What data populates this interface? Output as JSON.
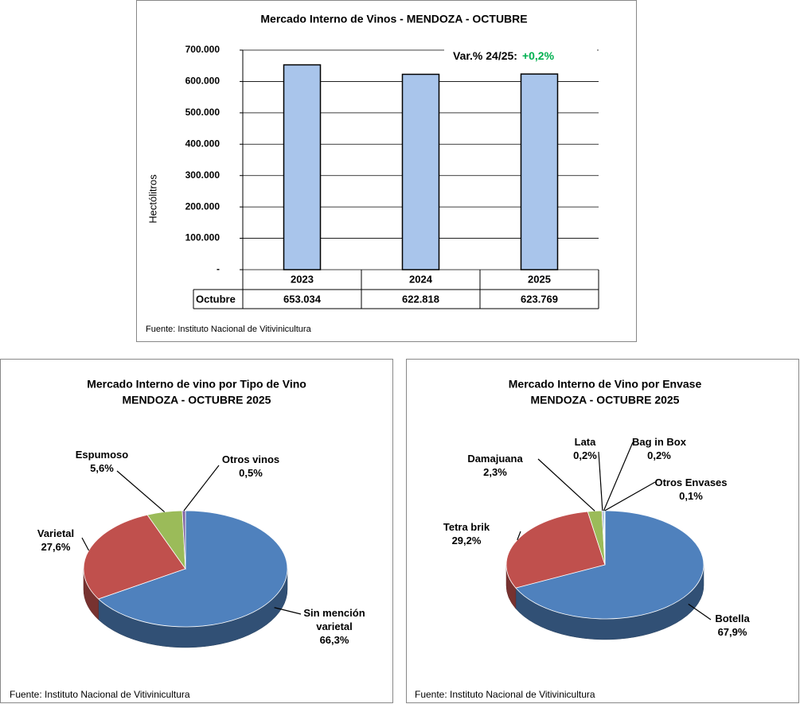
{
  "chart_data": [
    {
      "type": "bar",
      "title": "Mercado Interno de Vinos - MENDOZA  - OCTUBRE",
      "y_label": "Hectólitros",
      "categories": [
        "2023",
        "2024",
        "2025"
      ],
      "series": [
        {
          "name": "Octubre",
          "color": "#a9c5eb",
          "values": [
            653034,
            622818,
            623769
          ],
          "value_labels": [
            "653.034",
            "622.818",
            "623.769"
          ]
        }
      ],
      "ylim": [
        0,
        700000
      ],
      "yticks": [
        {
          "value": 0,
          "label": "-"
        },
        {
          "value": 100000,
          "label": "100.000"
        },
        {
          "value": 200000,
          "label": "200.000"
        },
        {
          "value": 300000,
          "label": "300.000"
        },
        {
          "value": 400000,
          "label": "400.000"
        },
        {
          "value": 500000,
          "label": "500.000"
        },
        {
          "value": 600000,
          "label": "600.000"
        },
        {
          "value": 700000,
          "label": "700.000"
        }
      ],
      "grid": true,
      "annotation": {
        "text": "Var.% 24/25:",
        "value_label": "+0,2%",
        "color": "#00b050"
      },
      "source": "Fuente: Instituto Nacional de Vitivinicultura"
    },
    {
      "type": "pie",
      "title": "Mercado Interno de vino por Tipo de Vino",
      "subtitle": "MENDOZA - OCTUBRE 2025",
      "categories": [
        "Sin mención varietal",
        "Varietal",
        "Espumoso",
        "Otros vinos"
      ],
      "values": [
        66.3,
        27.6,
        5.6,
        0.5
      ],
      "value_labels": [
        "66,3%",
        "27,6%",
        "5,6%",
        "0,5%"
      ],
      "colors": [
        "#4f81bd",
        "#c0504d",
        "#9bbb59",
        "#8064a2"
      ],
      "source": "Fuente: Instituto Nacional de Vitivinicultura"
    },
    {
      "type": "pie",
      "title": "Mercado Interno de Vino por Envase",
      "subtitle": "MENDOZA - OCTUBRE 2025",
      "categories": [
        "Botella",
        "Tetra brik",
        "Damajuana",
        "Lata",
        "Bag in Box",
        "Otros Envases"
      ],
      "values": [
        67.9,
        29.2,
        2.3,
        0.2,
        0.2,
        0.1
      ],
      "value_labels": [
        "67,9%",
        "29,2%",
        "2,3%",
        "0,2%",
        "0,2%",
        "0,1%"
      ],
      "colors": [
        "#4f81bd",
        "#c0504d",
        "#9bbb59",
        "#8064a2",
        "#4bacc6",
        "#f79646"
      ],
      "source": "Fuente: Instituto Nacional de Vitivinicultura"
    }
  ]
}
